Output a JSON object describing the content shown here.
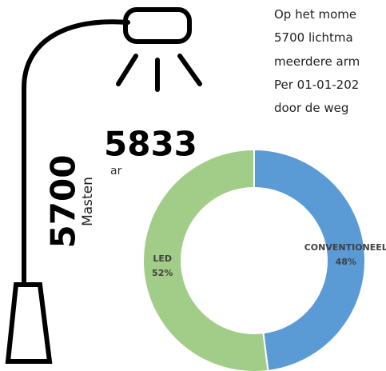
{
  "infographic": {
    "armaturen_count": "5833",
    "armaturen_label": "ar",
    "masten_count": "5700",
    "masten_label": "Masten"
  },
  "text_lines": [
    "Op het mome",
    "5700 lichtma",
    "meerdere arm",
    "Per 01-01-202",
    "door de weg"
  ],
  "chart_data": {
    "type": "donut",
    "categories": [
      "LED",
      "CONVENTIONEEL"
    ],
    "values": [
      52,
      48
    ],
    "value_labels": [
      "52%",
      "48%"
    ],
    "colors": [
      "#a2cd88",
      "#5b9bd5"
    ]
  }
}
